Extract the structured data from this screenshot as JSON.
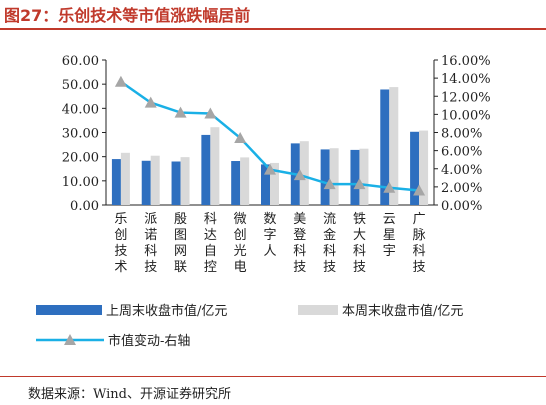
{
  "header": {
    "title": "图27：乐创技术等市值涨跌幅居前"
  },
  "footer": {
    "source": "数据来源：Wind、开源证券研究所"
  },
  "colors": {
    "prev_bar": "#2e6fbf",
    "curr_bar": "#d9d9d9",
    "line": "#1ab0e6",
    "marker": "#a6a6a6",
    "accent": "#c0392b"
  },
  "chart_data": {
    "type": "bar",
    "categories": [
      "乐创技术",
      "派诺科技",
      "殷图网联",
      "科达自控",
      "微创光电",
      "数字人",
      "美登科技",
      "流金科技",
      "铁大科技",
      "云星宇",
      "广脉科技"
    ],
    "series": [
      {
        "name": "上周末收盘市值/亿元",
        "type": "bar",
        "axis": "left",
        "values": [
          19.0,
          18.3,
          18.0,
          29.0,
          18.2,
          16.8,
          25.5,
          23.0,
          22.8,
          47.8,
          30.3
        ]
      },
      {
        "name": "本周末收盘市值/亿元",
        "type": "bar",
        "axis": "left",
        "values": [
          21.6,
          20.4,
          19.8,
          32.2,
          19.7,
          17.4,
          26.4,
          23.5,
          23.3,
          48.8,
          30.8
        ]
      },
      {
        "name": "市值变动-右轴",
        "type": "line",
        "axis": "right",
        "values": [
          13.6,
          11.3,
          10.2,
          10.1,
          7.4,
          3.9,
          3.3,
          2.3,
          2.3,
          1.9,
          1.6
        ]
      }
    ],
    "left_axis": {
      "min": 0,
      "max": 60,
      "step": 10,
      "ticks": [
        "0.00",
        "10.00",
        "20.00",
        "30.00",
        "40.00",
        "50.00",
        "60.00"
      ]
    },
    "right_axis": {
      "min": 0,
      "max": 16,
      "step": 2,
      "ticks": [
        "0.00%",
        "2.00%",
        "4.00%",
        "6.00%",
        "8.00%",
        "10.00%",
        "12.00%",
        "14.00%",
        "16.00%"
      ]
    },
    "grid": false,
    "legend_position": "bottom"
  }
}
